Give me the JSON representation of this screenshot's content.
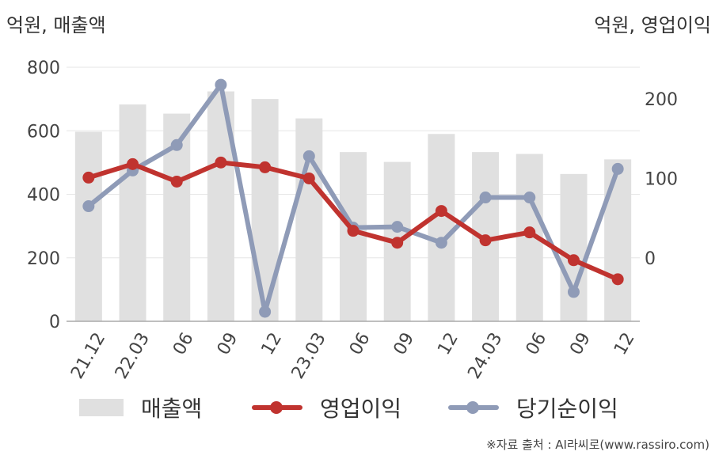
{
  "chart_data": {
    "type": "bar+line",
    "y_left_label": "억원, 매출액",
    "y_right_label": "억원, 영업이익",
    "categories": [
      "21.12",
      "22.03",
      "06",
      "09",
      "12",
      "23.03",
      "06",
      "09",
      "12",
      "24.03",
      "06",
      "09",
      "12"
    ],
    "y_left": {
      "min": 0,
      "max": 800,
      "ticks": [
        0,
        200,
        400,
        600,
        800
      ]
    },
    "y_right": {
      "min": -80,
      "max": 240,
      "ticks": [
        0,
        100,
        200
      ]
    },
    "grid": true,
    "legend_position": "bottom",
    "series": [
      {
        "name": "매출액",
        "type": "bar",
        "axis": "left",
        "color": "#e0e0e0",
        "values": [
          597,
          683,
          654,
          724,
          700,
          639,
          533,
          502,
          590,
          533,
          527,
          464,
          510
        ]
      },
      {
        "name": "영업이익",
        "type": "line",
        "axis": "right",
        "color": "#c0332f",
        "values": [
          101,
          118,
          96,
          120,
          114,
          100,
          34,
          19,
          59,
          22,
          32,
          -3,
          -27
        ]
      },
      {
        "name": "당기순이익",
        "type": "line",
        "axis": "right",
        "color": "#8f9bb7",
        "values": [
          65,
          110,
          142,
          218,
          -68,
          128,
          38,
          39,
          19,
          76,
          76,
          -43,
          112
        ]
      }
    ]
  },
  "source": "※자료 출처 : AI라씨로(www.rassiro.com)"
}
